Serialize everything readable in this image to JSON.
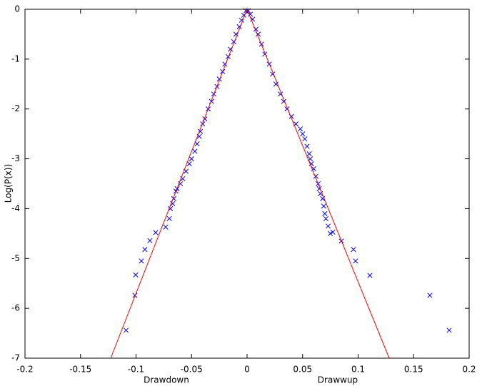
{
  "chart_data": {
    "type": "scatter",
    "x_labels": [
      "Drawdown",
      "Drawwup"
    ],
    "ylabel": "Log(P(x))",
    "xlim": [
      -0.2,
      0.2
    ],
    "ylim": [
      -7,
      0
    ],
    "xticks": [
      -0.2,
      -0.15,
      -0.1,
      -0.05,
      0,
      0.05,
      0.1,
      0.15,
      0.2
    ],
    "yticks": [
      -7,
      -6,
      -5,
      -4,
      -3,
      -2,
      -1,
      0
    ],
    "box": true,
    "series": [
      {
        "type": "scatter",
        "marker": "x",
        "color": "#0000ff",
        "x": [
          -0.109,
          -0.101,
          -0.1003,
          -0.0952,
          -0.092,
          -0.0875,
          -0.0823,
          -0.0733,
          -0.07,
          -0.069,
          -0.067,
          -0.066,
          -0.064,
          -0.063,
          -0.06,
          -0.058,
          -0.055,
          -0.052,
          -0.05,
          -0.047,
          -0.045,
          -0.043,
          -0.042,
          -0.04,
          -0.038,
          -0.035,
          -0.032,
          -0.03,
          -0.027,
          -0.025,
          -0.022,
          -0.02,
          -0.017,
          -0.015,
          -0.012,
          -0.01,
          -0.007,
          -0.005,
          -0.003,
          -0.001,
          0.001,
          0.003,
          0.005,
          0.008,
          0.01,
          0.013,
          0.016,
          0.02,
          0.023,
          0.026,
          0.03,
          0.033,
          0.036,
          0.04,
          0.044,
          0.048,
          0.05,
          0.052,
          0.054,
          0.056,
          0.057,
          0.058,
          0.06,
          0.062,
          0.064,
          0.065,
          0.066,
          0.068,
          0.069,
          0.07,
          0.071,
          0.073,
          0.075,
          0.0772,
          0.0849,
          0.0958,
          0.0977,
          0.1106,
          0.1646,
          0.182
        ],
        "y": [
          -6.44,
          -5.74,
          -5.33,
          -5.05,
          -4.82,
          -4.64,
          -4.48,
          -4.37,
          -4.2,
          -4.0,
          -3.9,
          -3.8,
          -3.65,
          -3.6,
          -3.5,
          -3.4,
          -3.25,
          -3.1,
          -3.0,
          -2.85,
          -2.7,
          -2.55,
          -2.45,
          -2.3,
          -2.2,
          -2.0,
          -1.85,
          -1.7,
          -1.55,
          -1.4,
          -1.25,
          -1.1,
          -0.95,
          -0.8,
          -0.65,
          -0.5,
          -0.35,
          -0.22,
          -0.12,
          -0.03,
          -0.03,
          -0.1,
          -0.2,
          -0.4,
          -0.5,
          -0.7,
          -0.9,
          -1.1,
          -1.3,
          -1.5,
          -1.7,
          -1.85,
          -2.0,
          -2.15,
          -2.3,
          -2.4,
          -2.5,
          -2.6,
          -2.75,
          -2.9,
          -3.0,
          -3.1,
          -3.2,
          -3.35,
          -3.5,
          -3.6,
          -3.7,
          -3.8,
          -3.95,
          -4.1,
          -4.2,
          -4.35,
          -4.5,
          -4.47,
          -4.65,
          -4.82,
          -5.05,
          -5.34,
          -5.74,
          -6.44
        ]
      },
      {
        "type": "line",
        "color": "#ff0000",
        "x": [
          -0.1228,
          0,
          0.128
        ],
        "y": [
          -7,
          0,
          -7
        ]
      }
    ]
  }
}
